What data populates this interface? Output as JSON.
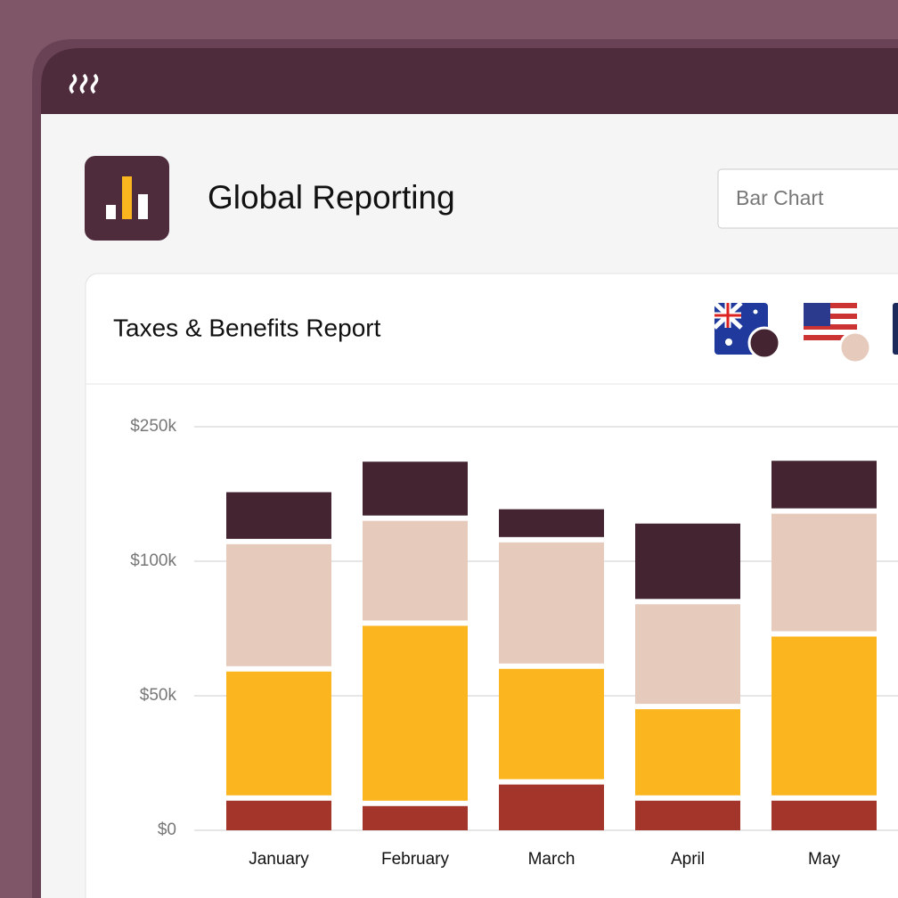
{
  "header": {
    "title": "Global Reporting",
    "view_select": "Bar Chart"
  },
  "card": {
    "title": "Taxes & Benefits Report"
  },
  "chart_data": {
    "type": "stacked_bar",
    "categories": [
      "January",
      "February",
      "March",
      "April",
      "May"
    ],
    "series": [
      {
        "color": "#a3352a",
        "values": [
          12,
          10,
          18,
          12,
          12
        ]
      },
      {
        "color": "#fbb51f",
        "values": [
          48,
          67,
          43,
          34,
          61
        ]
      },
      {
        "color": "#e6cbbd",
        "values": [
          62,
          71,
          63,
          39,
          83
        ]
      },
      {
        "color": "#442430",
        "values": [
          55,
          63,
          34,
          57,
          56
        ]
      }
    ],
    "ylim": [
      0,
      250
    ],
    "yticks": [
      {
        "value": 0,
        "label": "$0"
      },
      {
        "value": 50,
        "label": "$50k"
      },
      {
        "value": 100,
        "label": "$100k"
      },
      {
        "value": 250,
        "label": "$250k"
      }
    ],
    "grid": true
  }
}
